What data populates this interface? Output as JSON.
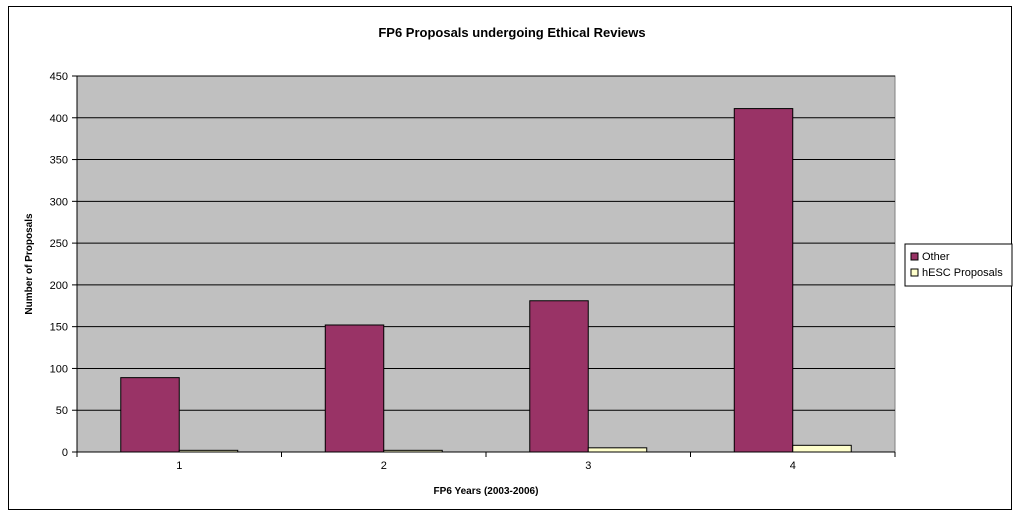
{
  "chart_data": {
    "type": "bar",
    "title": "FP6 Proposals undergoing Ethical Reviews",
    "xlabel": "FP6 Years (2003-2006)",
    "ylabel": "Number of Proposals",
    "categories": [
      "1",
      "2",
      "3",
      "4"
    ],
    "series": [
      {
        "name": "Other",
        "values": [
          89,
          152,
          181,
          411
        ],
        "color": "#993366"
      },
      {
        "name": "hESC Proposals",
        "values": [
          2,
          2,
          5,
          8
        ],
        "color": "#ffffcc"
      }
    ],
    "ylim": [
      0,
      450
    ],
    "yticks": [
      0,
      50,
      100,
      150,
      200,
      250,
      300,
      350,
      400,
      450
    ],
    "grid": true,
    "plot_background": "#c0c0c0",
    "legend_position": "right"
  }
}
